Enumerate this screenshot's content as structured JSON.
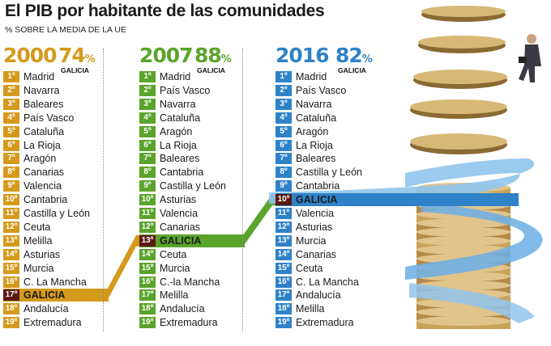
{
  "title": "El PIB por habitante de las comunidades",
  "subtitle": "% SOBRE LA MEDIA DE LA UE",
  "colors": {
    "y2000": "#d49a1c",
    "y2007": "#5aa42c",
    "y2016": "#2f82c8",
    "rank_bg": "#8a2a1c"
  },
  "chart_data": {
    "type": "table",
    "title": "El PIB por habitante de las comunidades",
    "subtitle": "% SOBRE LA MEDIA DE LA UE",
    "highlight_region": "GALICIA",
    "columns": [
      {
        "year": "2000",
        "galicia_pct": "74",
        "pct_sign": "%",
        "region_label": "GALICIA",
        "galicia_rank": 17,
        "ranking": [
          {
            "rank": "1º",
            "name": "Madrid"
          },
          {
            "rank": "2º",
            "name": "Navarra"
          },
          {
            "rank": "3º",
            "name": "Baleares"
          },
          {
            "rank": "4º",
            "name": "País Vasco"
          },
          {
            "rank": "5º",
            "name": "Cataluña"
          },
          {
            "rank": "6º",
            "name": "La Rioja"
          },
          {
            "rank": "7º",
            "name": "Aragón"
          },
          {
            "rank": "8º",
            "name": "Canarias"
          },
          {
            "rank": "9º",
            "name": "Valencia"
          },
          {
            "rank": "10º",
            "name": "Cantabria"
          },
          {
            "rank": "11º",
            "name": "Castilla y León"
          },
          {
            "rank": "12º",
            "name": "Ceuta"
          },
          {
            "rank": "13º",
            "name": "Melilla"
          },
          {
            "rank": "14º",
            "name": "Asturias"
          },
          {
            "rank": "15º",
            "name": "Murcia"
          },
          {
            "rank": "16º",
            "name": "C. La Mancha"
          },
          {
            "rank": "17º",
            "name": "GALICIA"
          },
          {
            "rank": "18º",
            "name": "Andalucía"
          },
          {
            "rank": "19º",
            "name": "Extremadura"
          }
        ]
      },
      {
        "year": "2007",
        "galicia_pct": "88",
        "pct_sign": "%",
        "region_label": "GALICIA",
        "galicia_rank": 13,
        "ranking": [
          {
            "rank": "1º",
            "name": "Madrid"
          },
          {
            "rank": "2º",
            "name": "País Vasco"
          },
          {
            "rank": "3º",
            "name": "Navarra"
          },
          {
            "rank": "4º",
            "name": "Cataluña"
          },
          {
            "rank": "5º",
            "name": "Aragón"
          },
          {
            "rank": "6º",
            "name": "La Rioja"
          },
          {
            "rank": "7º",
            "name": "Baleares"
          },
          {
            "rank": "8º",
            "name": "Cantabria"
          },
          {
            "rank": "9º",
            "name": "Castilla y León"
          },
          {
            "rank": "10º",
            "name": "Asturias"
          },
          {
            "rank": "11º",
            "name": "Valencia"
          },
          {
            "rank": "12º",
            "name": "Canarias"
          },
          {
            "rank": "13º",
            "name": "GALICIA"
          },
          {
            "rank": "14º",
            "name": "Ceuta"
          },
          {
            "rank": "15º",
            "name": "Murcia"
          },
          {
            "rank": "16º",
            "name": "C.-la Mancha"
          },
          {
            "rank": "17º",
            "name": "Melilla"
          },
          {
            "rank": "18º",
            "name": "Andalucía"
          },
          {
            "rank": "19º",
            "name": "Extremadura"
          }
        ]
      },
      {
        "year": "2016",
        "galicia_pct": "82",
        "pct_sign": "%",
        "region_label": "GALICIA",
        "galicia_rank": 10,
        "ranking": [
          {
            "rank": "1º",
            "name": "Madrid"
          },
          {
            "rank": "2º",
            "name": "País Vasco"
          },
          {
            "rank": "3º",
            "name": "Navarra"
          },
          {
            "rank": "4º",
            "name": "Cataluña"
          },
          {
            "rank": "5º",
            "name": "Aragón"
          },
          {
            "rank": "6º",
            "name": "La Rioja"
          },
          {
            "rank": "7º",
            "name": "Baleares"
          },
          {
            "rank": "8º",
            "name": "Castilla y León"
          },
          {
            "rank": "9º",
            "name": "Cantabria"
          },
          {
            "rank": "10º",
            "name": "GALICIA"
          },
          {
            "rank": "11º",
            "name": "Valencia"
          },
          {
            "rank": "12º",
            "name": "Asturias"
          },
          {
            "rank": "13º",
            "name": "Murcia"
          },
          {
            "rank": "14º",
            "name": "Canarias"
          },
          {
            "rank": "15º",
            "name": "Ceuta"
          },
          {
            "rank": "16º",
            "name": "C. La Mancha"
          },
          {
            "rank": "17º",
            "name": "Andalucía"
          },
          {
            "rank": "18º",
            "name": "Melilla"
          },
          {
            "rank": "19º",
            "name": "Extremadura"
          }
        ]
      }
    ]
  }
}
